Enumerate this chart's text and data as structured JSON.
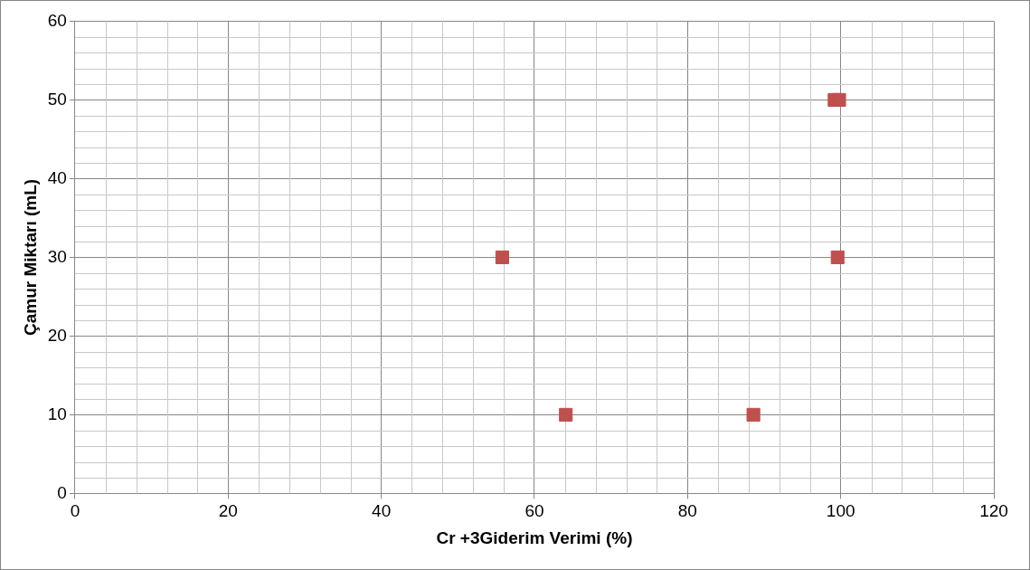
{
  "chart_data": {
    "type": "scatter",
    "xlabel": "Cr +3Giderim Verimi (%)",
    "ylabel": "Çamur Miktarı (mL)",
    "x": [
      55.8,
      64.1,
      88.6,
      99.2,
      99.8,
      99.6
    ],
    "series": [
      {
        "color": "#c0504d",
        "values": [
          30,
          10,
          10,
          50,
          50,
          30
        ]
      }
    ],
    "xlim": [
      0,
      120
    ],
    "xticks": [
      0,
      20,
      40,
      60,
      80,
      100,
      120
    ],
    "ylim": [
      0,
      60
    ],
    "yticks": [
      0,
      10,
      20,
      30,
      40,
      50,
      60
    ],
    "grid": true,
    "marker": "square",
    "legend": false
  }
}
